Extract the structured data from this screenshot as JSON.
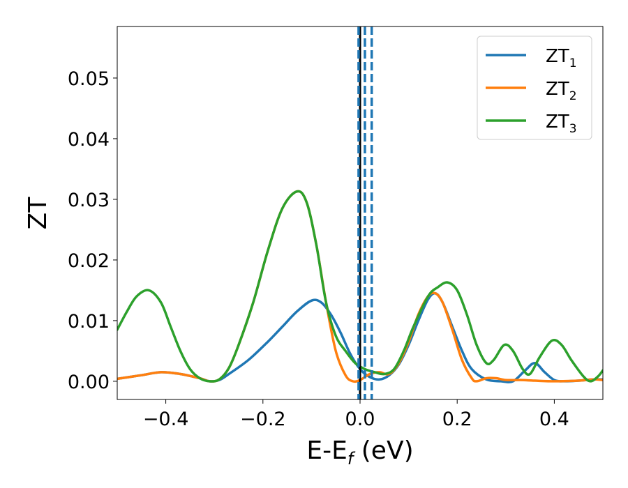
{
  "chart_data": {
    "type": "line",
    "xlabel_main": "E-E",
    "xlabel_sub": "f",
    "xlabel_unit": " (eV)",
    "ylabel": "ZT",
    "xlim": [
      -0.5,
      0.5
    ],
    "ylim": [
      -0.003,
      0.0585
    ],
    "xticks": [
      -0.4,
      -0.2,
      0.0,
      0.2,
      0.4
    ],
    "xtick_labels": [
      "−0.4",
      "−0.2",
      "0.0",
      "0.2",
      "0.4"
    ],
    "yticks": [
      0.0,
      0.01,
      0.02,
      0.03,
      0.04,
      0.05
    ],
    "ytick_labels": [
      "0.00",
      "0.01",
      "0.02",
      "0.03",
      "0.04",
      "0.05"
    ],
    "legend_position": "top-right",
    "grid": false,
    "vlines": [
      {
        "x": 0.0,
        "style": "solid",
        "color": "#000000"
      },
      {
        "x": -0.003,
        "style": "dashed",
        "color": "#1f77b4"
      },
      {
        "x": 0.01,
        "style": "dashed",
        "color": "#1f77b4"
      },
      {
        "x": 0.024,
        "style": "dashed",
        "color": "#1f77b4"
      }
    ],
    "series": [
      {
        "name": "ZT",
        "name_sub": "1",
        "color": "#1f77b4",
        "points": [
          [
            -0.5,
            0.0004
          ],
          [
            -0.45,
            0.001
          ],
          [
            -0.41,
            0.0015
          ],
          [
            -0.37,
            0.0012
          ],
          [
            -0.33,
            0.0005
          ],
          [
            -0.31,
            0.0
          ],
          [
            -0.29,
            0.0002
          ],
          [
            -0.27,
            0.0012
          ],
          [
            -0.23,
            0.0035
          ],
          [
            -0.19,
            0.0065
          ],
          [
            -0.16,
            0.009
          ],
          [
            -0.13,
            0.0115
          ],
          [
            -0.1,
            0.0133
          ],
          [
            -0.08,
            0.013
          ],
          [
            -0.06,
            0.011
          ],
          [
            -0.04,
            0.008
          ],
          [
            -0.02,
            0.0045
          ],
          [
            0.0,
            0.002
          ],
          [
            0.02,
            0.0007
          ],
          [
            0.04,
            0.0003
          ],
          [
            0.06,
            0.001
          ],
          [
            0.08,
            0.0028
          ],
          [
            0.1,
            0.006
          ],
          [
            0.12,
            0.01
          ],
          [
            0.14,
            0.0135
          ],
          [
            0.155,
            0.0145
          ],
          [
            0.17,
            0.013
          ],
          [
            0.19,
            0.009
          ],
          [
            0.21,
            0.005
          ],
          [
            0.23,
            0.002
          ],
          [
            0.26,
            0.0003
          ],
          [
            0.29,
            0.0
          ],
          [
            0.315,
            0.0
          ],
          [
            0.34,
            0.0018
          ],
          [
            0.36,
            0.003
          ],
          [
            0.38,
            0.0015
          ],
          [
            0.4,
            0.0002
          ],
          [
            0.42,
            0.0
          ],
          [
            0.45,
            0.0001
          ],
          [
            0.48,
            0.0003
          ],
          [
            0.5,
            0.0003
          ]
        ]
      },
      {
        "name": "ZT",
        "name_sub": "2",
        "color": "#ff7f0e",
        "points": [
          [
            -0.5,
            0.0004
          ],
          [
            -0.45,
            0.001
          ],
          [
            -0.41,
            0.0015
          ],
          [
            -0.37,
            0.0012
          ],
          [
            -0.33,
            0.0005
          ],
          [
            -0.31,
            0.0
          ],
          [
            -0.29,
            0.0003
          ],
          [
            -0.27,
            0.0022
          ],
          [
            -0.25,
            0.006
          ],
          [
            -0.22,
            0.013
          ],
          [
            -0.19,
            0.0215
          ],
          [
            -0.16,
            0.0285
          ],
          [
            -0.13,
            0.0313
          ],
          [
            -0.11,
            0.0295
          ],
          [
            -0.09,
            0.0225
          ],
          [
            -0.07,
            0.013
          ],
          [
            -0.05,
            0.005
          ],
          [
            -0.03,
            0.001
          ],
          [
            -0.015,
            0.0
          ],
          [
            0.0,
            0.0002
          ],
          [
            0.02,
            0.0012
          ],
          [
            0.04,
            0.0015
          ],
          [
            0.06,
            0.0012
          ],
          [
            0.08,
            0.003
          ],
          [
            0.1,
            0.0065
          ],
          [
            0.12,
            0.011
          ],
          [
            0.14,
            0.014
          ],
          [
            0.155,
            0.0145
          ],
          [
            0.17,
            0.013
          ],
          [
            0.19,
            0.0085
          ],
          [
            0.21,
            0.0035
          ],
          [
            0.23,
            0.0005
          ],
          [
            0.24,
            0.0
          ],
          [
            0.26,
            0.0005
          ],
          [
            0.28,
            0.0005
          ],
          [
            0.3,
            0.0002
          ],
          [
            0.33,
            0.0002
          ],
          [
            0.36,
            0.0001
          ],
          [
            0.4,
            0.0
          ],
          [
            0.45,
            0.0001
          ],
          [
            0.48,
            0.0003
          ],
          [
            0.5,
            0.0002
          ]
        ]
      },
      {
        "name": "ZT",
        "name_sub": "3",
        "color": "#2ca02c",
        "points": [
          [
            -0.5,
            0.0085
          ],
          [
            -0.48,
            0.0115
          ],
          [
            -0.46,
            0.014
          ],
          [
            -0.435,
            0.015
          ],
          [
            -0.41,
            0.013
          ],
          [
            -0.39,
            0.009
          ],
          [
            -0.37,
            0.005
          ],
          [
            -0.35,
            0.002
          ],
          [
            -0.33,
            0.0005
          ],
          [
            -0.31,
            0.0
          ],
          [
            -0.29,
            0.0003
          ],
          [
            -0.27,
            0.0022
          ],
          [
            -0.25,
            0.006
          ],
          [
            -0.22,
            0.013
          ],
          [
            -0.19,
            0.0215
          ],
          [
            -0.16,
            0.0285
          ],
          [
            -0.13,
            0.0313
          ],
          [
            -0.11,
            0.0295
          ],
          [
            -0.09,
            0.0225
          ],
          [
            -0.07,
            0.013
          ],
          [
            -0.05,
            0.0075
          ],
          [
            -0.03,
            0.005
          ],
          [
            -0.01,
            0.003
          ],
          [
            0.01,
            0.002
          ],
          [
            0.03,
            0.0015
          ],
          [
            0.05,
            0.0012
          ],
          [
            0.07,
            0.002
          ],
          [
            0.09,
            0.005
          ],
          [
            0.11,
            0.009
          ],
          [
            0.14,
            0.014
          ],
          [
            0.16,
            0.0155
          ],
          [
            0.18,
            0.0163
          ],
          [
            0.2,
            0.015
          ],
          [
            0.22,
            0.011
          ],
          [
            0.24,
            0.006
          ],
          [
            0.26,
            0.003
          ],
          [
            0.275,
            0.0035
          ],
          [
            0.297,
            0.006
          ],
          [
            0.315,
            0.005
          ],
          [
            0.335,
            0.002
          ],
          [
            0.35,
            0.0012
          ],
          [
            0.37,
            0.004
          ],
          [
            0.395,
            0.0067
          ],
          [
            0.415,
            0.006
          ],
          [
            0.435,
            0.0035
          ],
          [
            0.46,
            0.0008
          ],
          [
            0.475,
            0.0
          ],
          [
            0.49,
            0.0008
          ],
          [
            0.5,
            0.0018
          ]
        ]
      }
    ]
  }
}
